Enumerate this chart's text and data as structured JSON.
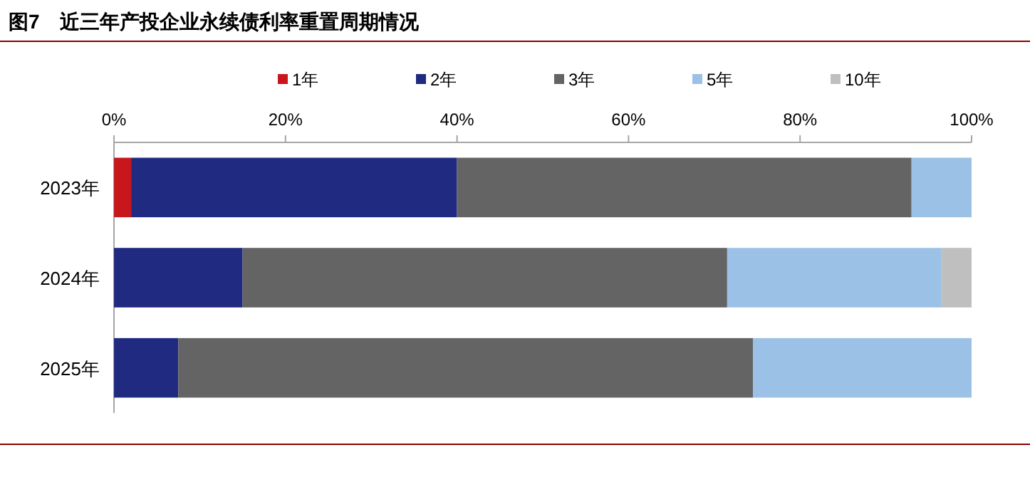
{
  "chart_data": {
    "type": "bar",
    "orientation": "horizontal",
    "stacked": true,
    "title": "图7　近三年产投企业永续债利率重置周期情况",
    "categories": [
      "2023年",
      "2024年",
      "2025年"
    ],
    "series": [
      {
        "name": "1年",
        "color": "#c8161d",
        "values": [
          2,
          0,
          0
        ]
      },
      {
        "name": "2年",
        "color": "#1f2a80",
        "values": [
          38,
          15,
          7.5
        ]
      },
      {
        "name": "3年",
        "color": "#646464",
        "values": [
          53,
          56.5,
          67
        ]
      },
      {
        "name": "5年",
        "color": "#9bc2e6",
        "values": [
          7,
          25,
          25.5
        ]
      },
      {
        "name": "10年",
        "color": "#bfbfbf",
        "values": [
          0,
          3.5,
          0
        ]
      }
    ],
    "xlim": [
      0,
      100
    ],
    "xticks": [
      {
        "value": 0,
        "label": "0%"
      },
      {
        "value": 20,
        "label": "20%"
      },
      {
        "value": 40,
        "label": "40%"
      },
      {
        "value": 60,
        "label": "60%"
      },
      {
        "value": 80,
        "label": "80%"
      },
      {
        "value": 100,
        "label": "100%"
      }
    ],
    "grid": false,
    "legend": "top"
  }
}
